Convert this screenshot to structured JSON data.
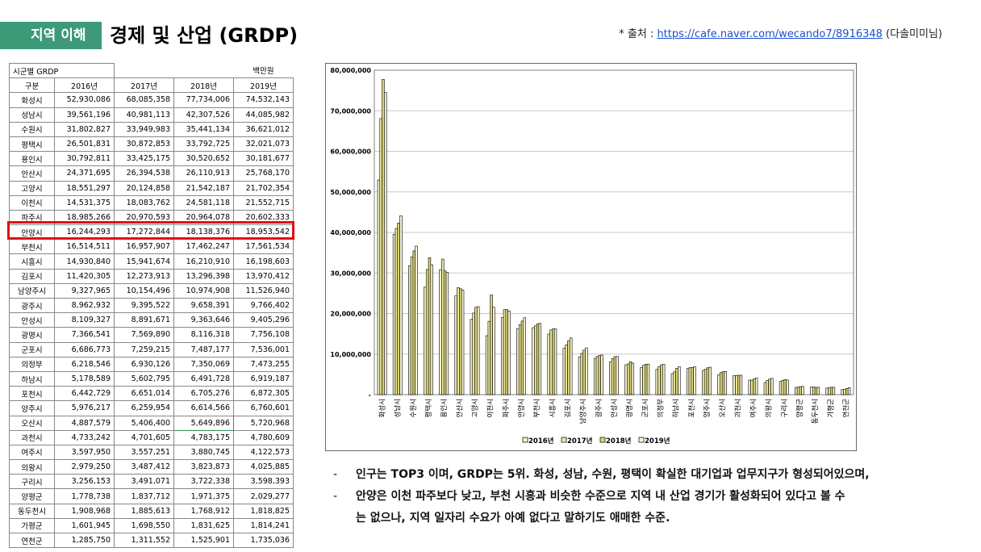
{
  "header": {
    "tag": "지역 이해",
    "title": "경제 및 산업 (GRDP)",
    "source_prefix": "* 출처 : ",
    "source_link": "https://cafe.naver.com/wecando7/8916348",
    "source_suffix": " (다솔미미님)"
  },
  "table": {
    "caption": "시군별 GRDP",
    "unit": "백만원",
    "columns": [
      "구분",
      "2016년",
      "2017년",
      "2018년",
      "2019년"
    ],
    "rows": [
      [
        "화성시",
        "52,930,086",
        "68,085,358",
        "77,734,006",
        "74,532,143"
      ],
      [
        "성남시",
        "39,561,196",
        "40,981,113",
        "42,307,526",
        "44,085,982"
      ],
      [
        "수원시",
        "31,802,827",
        "33,949,983",
        "35,441,134",
        "36,621,012"
      ],
      [
        "평택시",
        "26,501,831",
        "30,872,853",
        "33,792,725",
        "32,021,073"
      ],
      [
        "용인시",
        "30,792,811",
        "33,425,175",
        "30,520,652",
        "30,181,677"
      ],
      [
        "안산시",
        "24,371,695",
        "26,394,538",
        "26,110,913",
        "25,768,170"
      ],
      [
        "고양시",
        "18,551,297",
        "20,124,858",
        "21,542,187",
        "21,702,354"
      ],
      [
        "이천시",
        "14,531,375",
        "18,083,762",
        "24,581,118",
        "21,552,715"
      ],
      [
        "파주시",
        "18,985,266",
        "20,970,593",
        "20,964,078",
        "20,602,333"
      ],
      [
        "안양시",
        "16,244,293",
        "17,272,844",
        "18,138,376",
        "18,953,542"
      ],
      [
        "부천시",
        "16,514,511",
        "16,957,907",
        "17,462,247",
        "17,561,534"
      ],
      [
        "시흥시",
        "14,930,840",
        "15,941,674",
        "16,210,910",
        "16,198,603"
      ],
      [
        "김포시",
        "11,420,305",
        "12,273,913",
        "13,296,398",
        "13,970,412"
      ],
      [
        "남양주시",
        "9,327,965",
        "10,154,496",
        "10,974,908",
        "11,526,940"
      ],
      [
        "광주시",
        "8,962,932",
        "9,395,522",
        "9,658,391",
        "9,766,402"
      ],
      [
        "안성시",
        "8,109,327",
        "8,891,671",
        "9,363,646",
        "9,405,296"
      ],
      [
        "광명시",
        "7,366,541",
        "7,569,890",
        "8,116,318",
        "7,756,108"
      ],
      [
        "군포시",
        "6,686,773",
        "7,259,215",
        "7,487,177",
        "7,536,001"
      ],
      [
        "의정부",
        "6,218,546",
        "6,930,126",
        "7,350,069",
        "7,473,255"
      ],
      [
        "하남시",
        "5,178,589",
        "5,602,795",
        "6,491,728",
        "6,919,187"
      ],
      [
        "포천시",
        "6,442,729",
        "6,651,014",
        "6,705,276",
        "6,872,305"
      ],
      [
        "양주시",
        "5,976,217",
        "6,259,954",
        "6,614,566",
        "6,760,601"
      ],
      [
        "오산시",
        "4,887,579",
        "5,406,400",
        "5,649,896",
        "5,720,968"
      ],
      [
        "과천시",
        "4,733,242",
        "4,701,605",
        "4,783,175",
        "4,780,609"
      ],
      [
        "여주시",
        "3,597,950",
        "3,557,251",
        "3,880,745",
        "4,122,573"
      ],
      [
        "의왕시",
        "2,979,250",
        "3,487,412",
        "3,823,873",
        "4,025,885"
      ],
      [
        "구리시",
        "3,256,153",
        "3,491,071",
        "3,722,338",
        "3,598,393"
      ],
      [
        "양평군",
        "1,778,738",
        "1,837,712",
        "1,971,375",
        "2,029,277"
      ],
      [
        "동두천시",
        "1,908,968",
        "1,885,613",
        "1,768,912",
        "1,818,825"
      ],
      [
        "가평군",
        "1,601,945",
        "1,698,550",
        "1,831,625",
        "1,814,241"
      ],
      [
        "연천군",
        "1,285,750",
        "1,311,552",
        "1,525,901",
        "1,735,036"
      ]
    ]
  },
  "chart_data": {
    "type": "bar",
    "categories": [
      "화성시",
      "성남시",
      "수원시",
      "평택시",
      "용인시",
      "안산시",
      "고양시",
      "이천시",
      "파주시",
      "안양시",
      "부천시",
      "시흥시",
      "김포시",
      "남양주시",
      "광주시",
      "안성시",
      "광명시",
      "군포시",
      "의정부",
      "하남시",
      "포천시",
      "양주시",
      "오산시",
      "과천시",
      "여주시",
      "의왕시",
      "구리시",
      "양평군",
      "동두천시",
      "가평군",
      "연천군"
    ],
    "series": [
      {
        "name": "2016년",
        "color": "#f3f0c4",
        "values": [
          52930086,
          39561196,
          31802827,
          26501831,
          30792811,
          24371695,
          18551297,
          14531375,
          18985266,
          16244293,
          16514511,
          14930840,
          11420305,
          9327965,
          8962932,
          8109327,
          7366541,
          6686773,
          6218546,
          5178589,
          6442729,
          5976217,
          4887579,
          4733242,
          3597950,
          2979250,
          3256153,
          1778738,
          1908968,
          1601945,
          1285750
        ]
      },
      {
        "name": "2017년",
        "color": "#ecea9e",
        "values": [
          68085358,
          40981113,
          33949983,
          30872853,
          33425175,
          26394538,
          20124858,
          18083762,
          20970593,
          17272844,
          16957907,
          15941674,
          12273913,
          10154496,
          9395522,
          8891671,
          7569890,
          7259215,
          6930126,
          5602795,
          6651014,
          6259954,
          5406400,
          4701605,
          3557251,
          3487412,
          3491071,
          1837712,
          1885613,
          1698550,
          1311552
        ]
      },
      {
        "name": "2018년",
        "color": "#dcd56e",
        "values": [
          77734006,
          42307526,
          35441134,
          33792725,
          30520652,
          26110913,
          21542187,
          24581118,
          20964078,
          18138376,
          17462247,
          16210910,
          13296398,
          10974908,
          9658391,
          9363646,
          8116318,
          7487177,
          7350069,
          6491728,
          6705276,
          6614566,
          5649896,
          4783175,
          3880745,
          3823873,
          3722338,
          1971375,
          1768912,
          1831625,
          1525901
        ]
      },
      {
        "name": "2019년",
        "color": "#f6f4d8",
        "values": [
          74532143,
          44085982,
          36621012,
          32021073,
          30181677,
          25768170,
          21702354,
          21552715,
          20602333,
          18953542,
          17561534,
          16198603,
          13970412,
          11526940,
          9766402,
          9405296,
          7756108,
          7536001,
          7473255,
          6919187,
          6872305,
          6760601,
          5720968,
          4780609,
          4122573,
          4025885,
          3598393,
          2029277,
          1818825,
          1814241,
          1735036
        ]
      }
    ],
    "yticks": [
      "-",
      "10,000,000",
      "20,000,000",
      "30,000,000",
      "40,000,000",
      "50,000,000",
      "60,000,000",
      "70,000,000",
      "80,000,000"
    ],
    "ylim": [
      0,
      80000000
    ],
    "grid": true,
    "legend_position": "bottom"
  },
  "bullets": [
    "인구는 TOP3 이며, GRDP는 5위. 화성, 성남, 수원, 평택이 확실한 대기업과 업무지구가 형성되어있으며,",
    "안양은 이천 파주보다 낮고, 부천 시흥과 비슷한 수준으로 지역 내 산업 경기가 활성화되어 있다고 볼 수",
    "는 없으나, 지역 일자리 수요가 아예 없다고 말하기도 애매한 수준."
  ],
  "bullet_dash": "-"
}
